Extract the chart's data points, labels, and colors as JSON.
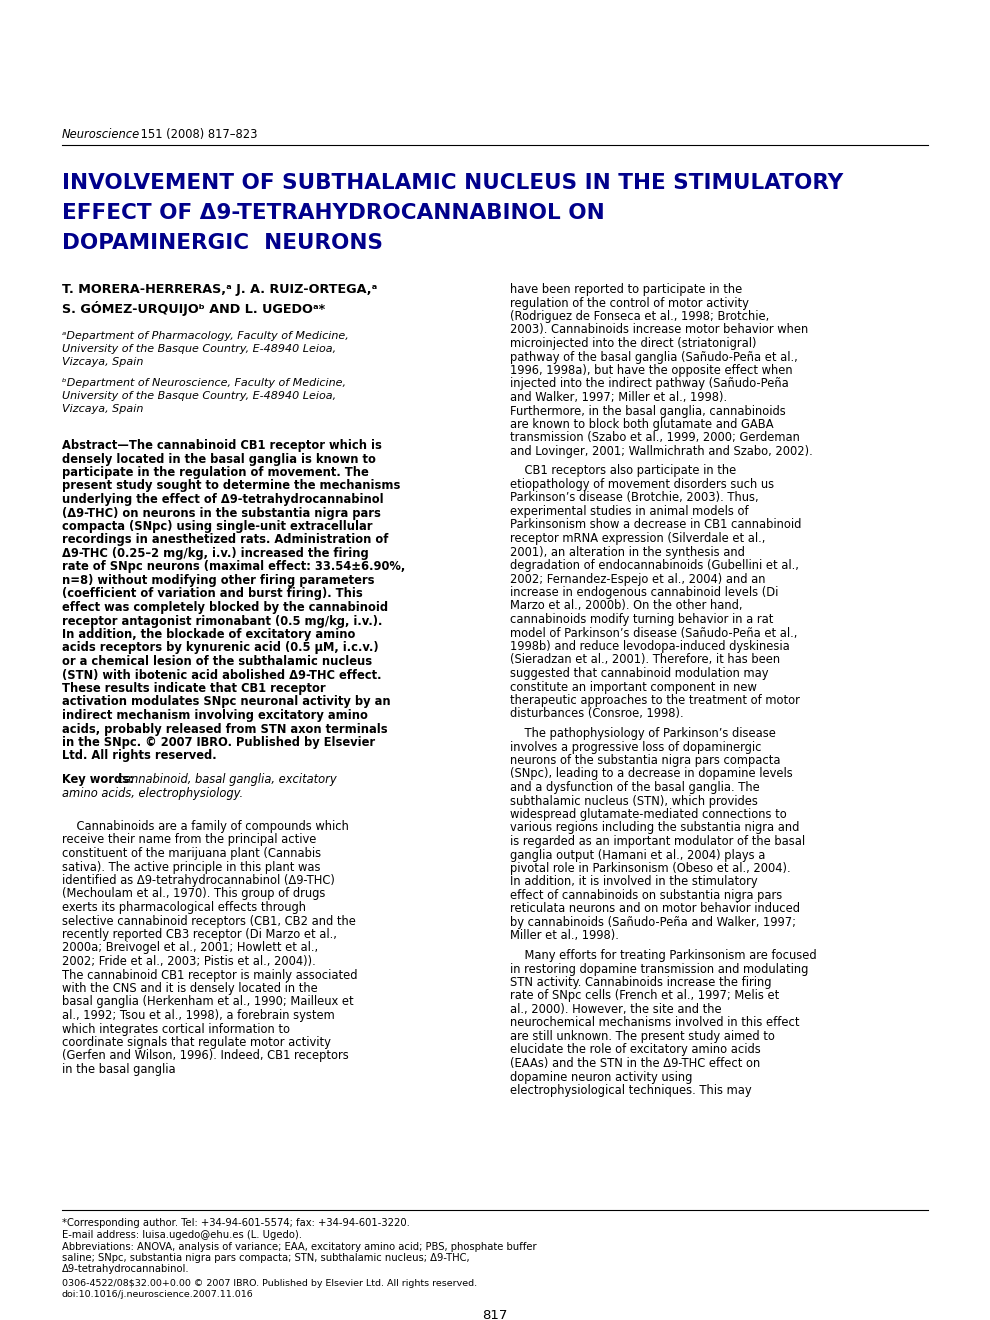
{
  "journal_header": "Neuroscience 151 (2008) 817–823",
  "title_line1": "INVOLVEMENT OF SUBTHALAMIC NUCLEUS IN THE STIMULATORY",
  "title_line2": "EFFECT OF Δ9-TETRAHYDROCANNABINOL ON",
  "title_line3": "DOPAMINERGIC  NEURONS",
  "authors_line1": "T. MORERA-HERRERAS,ᵃ J. A. RUIZ-ORTEGA,ᵃ",
  "authors_line2": "S. GÓMEZ-URQUIJOᵇ AND L. UGEDOᵃ*",
  "affil_a": "ᵃDepartment of Pharmacology, Faculty of Medicine, University of the Basque Country, E-48940 Leioa, Vizcaya, Spain",
  "affil_b": "ᵇDepartment of Neuroscience, Faculty of Medicine, University of the Basque Country, E-48940 Leioa, Vizcaya, Spain",
  "abstract_bold": "Abstract—The cannabinoid CB1 receptor which is densely located in the basal ganglia is known to participate in the regulation of movement. The present study sought to determine the mechanisms underlying the effect of Δ9-tetrahydrocannabinol (Δ9-THC) on neurons in the substantia nigra pars compacta (SNpc) using single-unit extracellular recordings in anesthetized rats. Administration of Δ9-THC (0.25–2 mg/kg, i.v.) increased the firing rate of SNpc neurons (maximal effect: 33.54±6.90%, n=8) without modifying other firing parameters (coefficient of variation and burst firing). This effect was completely blocked by the cannabinoid receptor antagonist rimonabant (0.5 mg/kg, i.v.). In addition, the blockade of excitatory amino acids receptors by kynurenic acid (0.5 μM, i.c.v.) or a chemical lesion of the subthalamic nucleus (STN) with ibotenic acid abolished Δ9-THC effect. These results indicate that CB1 receptor activation modulates SNpc neuronal activity by an indirect mechanism involving excitatory amino acids, probably released from STN axon terminals in the SNpc. © 2007 IBRO. Published by Elsevier Ltd. All rights reserved.",
  "keywords_bold": "Key words:",
  "keywords_italic": " cannabinoid, basal ganglia, excitatory amino acids, electrophysiology.",
  "left_intro": "Cannabinoids are a family of compounds which receive their name from the principal active constituent of the marijuana plant (Cannabis sativa). The active principle in this plant was identified as Δ9-tetrahydrocannabinol (Δ9-THC) (Mechoulam et al., 1970). This group of drugs exerts its pharmacological effects through selective cannabinoid receptors (CB1, CB2 and the recently reported CB3 receptor (Di Marzo et al., 2000a; Breivogel et al., 2001; Howlett et al., 2002; Fride et al., 2003; Pistis et al., 2004)). The cannabinoid CB1 receptor is mainly associated with the CNS and it is densely located in the basal ganglia (Herkenham et al., 1990; Mailleux et al., 1992; Tsou et al., 1998), a forebrain system which integrates cortical information to coordinate signals that regulate motor activity (Gerfen and Wilson, 1996). Indeed, CB1 receptors in the basal ganglia",
  "right_p1": "have been reported to participate in the regulation of the control of motor activity (Rodriguez de Fonseca et al., 1998; Brotchie, 2003). Cannabinoids increase motor behavior when microinjected into the direct (striatonigral) pathway of the basal ganglia (Sañudo-Peña et al., 1996, 1998a), but have the opposite effect when injected into the indirect pathway (Sañudo-Peña and Walker, 1997; Miller et al., 1998). Furthermore, in the basal ganglia, cannabinoids are known to block both glutamate and GABA transmission (Szabo et al., 1999, 2000; Gerdeman and Lovinger, 2001; Wallmichrath and Szabo, 2002).",
  "right_p2": "CB1 receptors also participate in the etiopathology of movement disorders such us Parkinson’s disease (Brotchie, 2003). Thus, experimental studies in animal models of Parkinsonism show a decrease in CB1 cannabinoid receptor mRNA expression (Silverdale et al., 2001), an alteration in the synthesis and degradation of endocannabinoids (Gubellini et al., 2002; Fernandez-Espejo et al., 2004) and an increase in endogenous cannabinoid levels (Di Marzo et al., 2000b). On the other hand, cannabinoids modify turning behavior in a rat model of Parkinson’s disease (Sañudo-Peña et al., 1998b) and reduce levodopa-induced dyskinesia (Sieradzan et al., 2001). Therefore, it has been suggested that cannabinoid modulation may constitute an important component in new therapeutic approaches to the treatment of motor disturbances (Consroe, 1998).",
  "right_p3": "The pathophysiology of Parkinson’s disease involves a progressive loss of dopaminergic neurons of the substantia nigra pars compacta (SNpc), leading to a decrease in dopamine levels and a dysfunction of the basal ganglia. The subthalamic nucleus (STN), which provides widespread glutamate-mediated connections to various regions including the substantia nigra and is regarded as an important modulator of the basal ganglia output (Hamani et al., 2004) plays a pivotal role in Parkinsonism (Obeso et al., 2004). In addition, it is involved in the stimulatory effect of cannabinoids on substantia nigra pars reticulata neurons and on motor behavior induced by cannabinoids (Sañudo-Peña and Walker, 1997; Miller et al., 1998).",
  "right_p4": "Many efforts for treating Parkinsonism are focused in restoring dopamine transmission and modulating STN activity. Cannabinoids increase the firing rate of SNpc cells (French et al., 1997; Melis et al., 2000). However, the site and the neurochemical mechanisms involved in this effect are still unknown. The present study aimed to elucidate the role of excitatory amino acids (EAAs) and the STN in the Δ9-THC effect on dopamine neuron activity using electrophysiological techniques. This may",
  "footnote1": "*Corresponding author. Tel: +34-94-601-5574; fax: +34-94-601-3220.",
  "footnote2": "E-mail address: luisa.ugedo@ehu.es (L. Ugedo).",
  "footnote3": "Abbreviations: ANOVA, analysis of variance; EAA, excitatory amino acid; PBS, phosphate buffer saline; SNpc, substantia nigra pars compacta; STN, subthalamic nucleus; Δ9-THC, Δ9-tetrahydrocannabinol.",
  "copyright_line": "0306-4522/08$32.00+0.00 © 2007 IBRO. Published by Elsevier Ltd. All rights reserved.",
  "doi_line": "doi:10.1016/j.neuroscience.2007.11.016",
  "page_num": "817",
  "title_color": "#00008B",
  "body_color": "#000000",
  "link_color": "#2255aa"
}
